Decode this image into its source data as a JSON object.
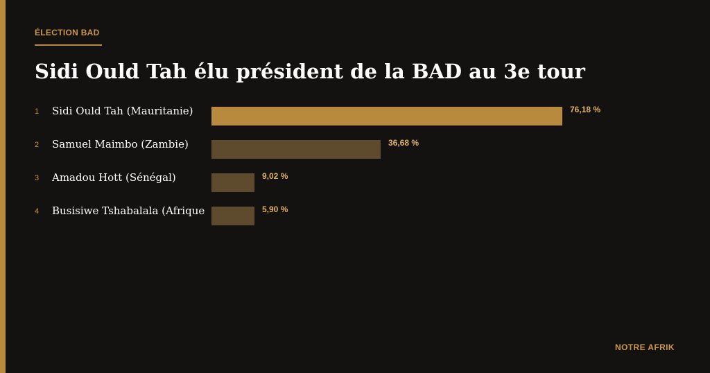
{
  "header": {
    "kicker": "ÉLECTION BAD",
    "title": "Sidi Ould Tah élu président de la BAD au 3e tour"
  },
  "footer": {
    "source": "NOTRE AFRIK"
  },
  "colors": {
    "background": "#141210",
    "accent": "#b88a3e",
    "bar_highlight": "#b88a3e",
    "bar_default": "#5e4a2c",
    "value_text": "#e0b168"
  },
  "chart_data": {
    "type": "bar",
    "orientation": "horizontal",
    "xlim": [
      0,
      76.18
    ],
    "grid": false,
    "legend": "none",
    "categories": [
      "Sidi Ould Tah (Mauritanie)",
      "Samuel Maimbo (Zambie)",
      "Amadou Hott (Sénégal)",
      "Busisiwe Tshabalala (Afrique"
    ],
    "ranks": [
      "1",
      "2",
      "3",
      "4"
    ],
    "values": [
      76.18,
      36.68,
      9.02,
      5.9
    ],
    "value_labels": [
      "76,18 %",
      "36,68 %",
      "9,02 %",
      "5,90 %"
    ],
    "highlight_index": 0
  }
}
